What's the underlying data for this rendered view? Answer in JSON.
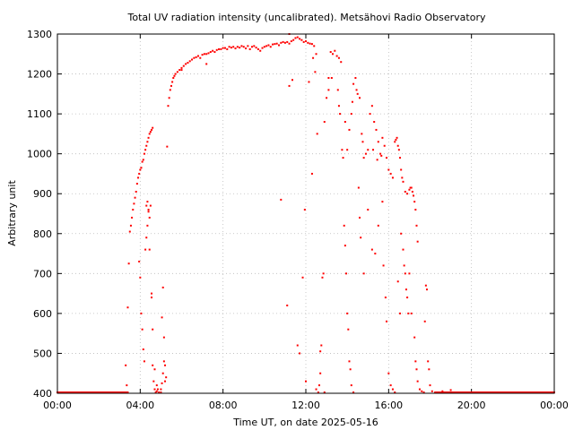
{
  "chart_data": {
    "type": "scatter",
    "title": "Total UV radiation intensity (uncalibrated). Metsähovi Radio Observatory",
    "xlabel": "Time UT, on date 2025-05-16",
    "ylabel": "Arbitrary unit",
    "xlim": [
      0,
      24
    ],
    "ylim": [
      400,
      1300
    ],
    "x_unit": "hours UT",
    "xticks": [
      {
        "value": 0,
        "label": "00:00"
      },
      {
        "value": 4,
        "label": "04:00"
      },
      {
        "value": 8,
        "label": "08:00"
      },
      {
        "value": 12,
        "label": "12:00"
      },
      {
        "value": 16,
        "label": "16:00"
      },
      {
        "value": 20,
        "label": "20:00"
      },
      {
        "value": 24,
        "label": "00:00"
      }
    ],
    "yticks": [
      {
        "value": 400,
        "label": "400"
      },
      {
        "value": 500,
        "label": "500"
      },
      {
        "value": 600,
        "label": "600"
      },
      {
        "value": 700,
        "label": "700"
      },
      {
        "value": 800,
        "label": "800"
      },
      {
        "value": 900,
        "label": "900"
      },
      {
        "value": 1000,
        "label": "1000"
      },
      {
        "value": 1100,
        "label": "1100"
      },
      {
        "value": 1200,
        "label": "1200"
      },
      {
        "value": 1300,
        "label": "1300"
      }
    ],
    "grid": true,
    "marker_color": "#ff0000",
    "series": [
      {
        "points": [
          [
            0.0,
            400
          ],
          [
            0.5,
            400
          ],
          [
            1.0,
            400
          ],
          [
            1.5,
            400
          ],
          [
            2.0,
            400
          ],
          [
            2.5,
            400
          ],
          [
            3.0,
            400
          ],
          [
            3.4,
            400
          ],
          [
            3.3,
            470
          ],
          [
            3.35,
            420
          ],
          [
            3.4,
            615
          ],
          [
            3.45,
            725
          ],
          [
            3.5,
            805
          ],
          [
            3.55,
            820
          ],
          [
            3.6,
            840
          ],
          [
            3.65,
            860
          ],
          [
            3.7,
            875
          ],
          [
            3.75,
            890
          ],
          [
            3.8,
            905
          ],
          [
            3.85,
            925
          ],
          [
            3.9,
            940
          ],
          [
            3.95,
            950
          ],
          [
            4.0,
            960
          ],
          [
            4.05,
            965
          ],
          [
            4.1,
            980
          ],
          [
            4.15,
            985
          ],
          [
            4.2,
            1000
          ],
          [
            4.25,
            1010
          ],
          [
            4.3,
            1020
          ],
          [
            4.35,
            1030
          ],
          [
            4.4,
            1040
          ],
          [
            4.45,
            1050
          ],
          [
            4.5,
            1055
          ],
          [
            4.55,
            1060
          ],
          [
            4.6,
            1065
          ],
          [
            3.95,
            730
          ],
          [
            4.0,
            690
          ],
          [
            4.05,
            600
          ],
          [
            4.1,
            560
          ],
          [
            4.15,
            510
          ],
          [
            4.2,
            480
          ],
          [
            4.25,
            760
          ],
          [
            4.3,
            790
          ],
          [
            4.35,
            820
          ],
          [
            4.4,
            860
          ],
          [
            4.45,
            840
          ],
          [
            4.5,
            870
          ],
          [
            4.55,
            650
          ],
          [
            4.6,
            470
          ],
          [
            4.65,
            430
          ],
          [
            4.7,
            410
          ],
          [
            4.75,
            400
          ],
          [
            4.8,
            405
          ],
          [
            4.85,
            410
          ],
          [
            4.9,
            400
          ],
          [
            5.0,
            400
          ],
          [
            5.05,
            590
          ],
          [
            5.1,
            665
          ],
          [
            5.15,
            540
          ],
          [
            5.2,
            470
          ],
          [
            5.25,
            440
          ],
          [
            5.3,
            1018
          ],
          [
            5.35,
            1120
          ],
          [
            5.4,
            1140
          ],
          [
            5.45,
            1160
          ],
          [
            5.5,
            1170
          ],
          [
            5.55,
            1180
          ],
          [
            5.6,
            1190
          ],
          [
            5.65,
            1195
          ],
          [
            5.7,
            1200
          ],
          [
            5.8,
            1205
          ],
          [
            5.9,
            1210
          ],
          [
            6.0,
            1215
          ],
          [
            6.1,
            1220
          ],
          [
            6.2,
            1225
          ],
          [
            6.3,
            1228
          ],
          [
            6.4,
            1232
          ],
          [
            6.5,
            1236
          ],
          [
            6.6,
            1240
          ],
          [
            6.7,
            1242
          ],
          [
            6.8,
            1245
          ],
          [
            6.9,
            1240
          ],
          [
            7.0,
            1248
          ],
          [
            7.1,
            1250
          ],
          [
            7.2,
            1250
          ],
          [
            7.3,
            1252
          ],
          [
            7.4,
            1255
          ],
          [
            7.5,
            1258
          ],
          [
            7.6,
            1255
          ],
          [
            7.7,
            1260
          ],
          [
            7.8,
            1262
          ],
          [
            7.9,
            1262
          ],
          [
            8.0,
            1265
          ],
          [
            8.1,
            1265
          ],
          [
            8.2,
            1262
          ],
          [
            8.3,
            1268
          ],
          [
            8.4,
            1266
          ],
          [
            8.5,
            1268
          ],
          [
            8.6,
            1264
          ],
          [
            8.7,
            1268
          ],
          [
            8.8,
            1266
          ],
          [
            8.9,
            1270
          ],
          [
            9.0,
            1268
          ],
          [
            9.1,
            1264
          ],
          [
            9.2,
            1270
          ],
          [
            9.3,
            1262
          ],
          [
            9.4,
            1268
          ],
          [
            9.5,
            1270
          ],
          [
            9.6,
            1266
          ],
          [
            9.7,
            1262
          ],
          [
            9.8,
            1258
          ],
          [
            9.9,
            1265
          ],
          [
            10.0,
            1268
          ],
          [
            10.1,
            1270
          ],
          [
            10.2,
            1272
          ],
          [
            10.3,
            1268
          ],
          [
            10.4,
            1274
          ],
          [
            10.5,
            1275
          ],
          [
            10.6,
            1276
          ],
          [
            10.7,
            1272
          ],
          [
            10.8,
            1278
          ],
          [
            10.9,
            1280
          ],
          [
            11.0,
            1278
          ],
          [
            11.1,
            1280
          ],
          [
            11.2,
            1276
          ],
          [
            11.3,
            1282
          ],
          [
            11.4,
            1285
          ],
          [
            11.5,
            1290
          ],
          [
            11.6,
            1292
          ],
          [
            11.7,
            1288
          ],
          [
            11.8,
            1285
          ],
          [
            11.9,
            1280
          ],
          [
            12.0,
            1282
          ],
          [
            12.1,
            1278
          ],
          [
            12.2,
            1276
          ],
          [
            12.3,
            1275
          ],
          [
            12.4,
            1270
          ],
          [
            12.5,
            1250
          ],
          [
            11.2,
            1300
          ],
          [
            10.8,
            885
          ],
          [
            11.1,
            620
          ],
          [
            11.2,
            1170
          ],
          [
            11.35,
            1185
          ],
          [
            11.6,
            520
          ],
          [
            11.7,
            500
          ],
          [
            11.85,
            690
          ],
          [
            11.95,
            860
          ],
          [
            12.15,
            1180
          ],
          [
            12.35,
            1240
          ],
          [
            12.45,
            1205
          ],
          [
            12.3,
            950
          ],
          [
            12.55,
            1050
          ],
          [
            12.5,
            410
          ],
          [
            12.6,
            400
          ],
          [
            12.65,
            420
          ],
          [
            12.7,
            450
          ],
          [
            12.75,
            520
          ],
          [
            12.8,
            690
          ],
          [
            12.85,
            700
          ],
          [
            12.9,
            1080
          ],
          [
            13.0,
            1140
          ],
          [
            13.1,
            1160
          ],
          [
            13.2,
            1255
          ],
          [
            13.3,
            1250
          ],
          [
            13.4,
            1258
          ],
          [
            13.5,
            1245
          ],
          [
            13.6,
            1240
          ],
          [
            13.7,
            1230
          ],
          [
            13.55,
            1160
          ],
          [
            13.6,
            1120
          ],
          [
            13.65,
            1100
          ],
          [
            13.75,
            1010
          ],
          [
            13.8,
            990
          ],
          [
            13.85,
            820
          ],
          [
            13.9,
            770
          ],
          [
            13.95,
            700
          ],
          [
            14.0,
            600
          ],
          [
            14.05,
            560
          ],
          [
            14.1,
            480
          ],
          [
            14.15,
            460
          ],
          [
            14.2,
            420
          ],
          [
            14.3,
            400
          ],
          [
            14.0,
            1010
          ],
          [
            14.1,
            1060
          ],
          [
            14.2,
            1100
          ],
          [
            14.25,
            1130
          ],
          [
            14.3,
            1175
          ],
          [
            14.4,
            1190
          ],
          [
            14.45,
            1160
          ],
          [
            14.5,
            1150
          ],
          [
            14.6,
            1140
          ],
          [
            14.7,
            1050
          ],
          [
            14.75,
            1030
          ],
          [
            14.8,
            990
          ],
          [
            14.9,
            1000
          ],
          [
            15.0,
            1010
          ],
          [
            15.1,
            1100
          ],
          [
            15.2,
            1120
          ],
          [
            15.3,
            1080
          ],
          [
            15.4,
            1060
          ],
          [
            15.5,
            1030
          ],
          [
            15.6,
            1000
          ],
          [
            15.7,
            1040
          ],
          [
            15.8,
            1020
          ],
          [
            15.9,
            990
          ],
          [
            16.0,
            960
          ],
          [
            16.1,
            950
          ],
          [
            16.2,
            940
          ],
          [
            16.3,
            1030
          ],
          [
            16.35,
            1035
          ],
          [
            16.4,
            1040
          ],
          [
            16.45,
            1020
          ],
          [
            16.5,
            1010
          ],
          [
            16.55,
            990
          ],
          [
            16.6,
            960
          ],
          [
            16.65,
            940
          ],
          [
            16.7,
            930
          ],
          [
            16.8,
            905
          ],
          [
            16.9,
            900
          ],
          [
            17.0,
            910
          ],
          [
            17.05,
            915
          ],
          [
            17.1,
            915
          ],
          [
            17.15,
            905
          ],
          [
            17.2,
            895
          ],
          [
            17.25,
            880
          ],
          [
            17.3,
            860
          ],
          [
            17.35,
            820
          ],
          [
            17.4,
            780
          ],
          [
            14.55,
            915
          ],
          [
            14.6,
            840
          ],
          [
            14.65,
            790
          ],
          [
            14.8,
            700
          ],
          [
            15.0,
            860
          ],
          [
            15.2,
            760
          ],
          [
            15.35,
            750
          ],
          [
            15.5,
            820
          ],
          [
            15.7,
            880
          ],
          [
            15.75,
            720
          ],
          [
            15.85,
            640
          ],
          [
            15.9,
            580
          ],
          [
            16.0,
            450
          ],
          [
            16.1,
            420
          ],
          [
            16.2,
            410
          ],
          [
            16.3,
            400
          ],
          [
            16.45,
            680
          ],
          [
            16.55,
            600
          ],
          [
            16.6,
            800
          ],
          [
            16.7,
            760
          ],
          [
            16.75,
            720
          ],
          [
            16.8,
            700
          ],
          [
            16.85,
            660
          ],
          [
            16.9,
            640
          ],
          [
            16.95,
            600
          ],
          [
            17.0,
            700
          ],
          [
            17.1,
            600
          ],
          [
            17.25,
            540
          ],
          [
            17.3,
            480
          ],
          [
            17.35,
            460
          ],
          [
            17.4,
            430
          ],
          [
            17.5,
            410
          ],
          [
            17.6,
            405
          ],
          [
            17.7,
            400
          ],
          [
            17.75,
            580
          ],
          [
            17.8,
            670
          ],
          [
            17.85,
            660
          ],
          [
            17.9,
            480
          ],
          [
            17.95,
            460
          ],
          [
            18.0,
            420
          ],
          [
            18.1,
            405
          ],
          [
            18.3,
            400
          ],
          [
            18.6,
            405
          ],
          [
            19.0,
            408
          ],
          [
            19.5,
            400
          ],
          [
            20.0,
            400
          ],
          [
            20.5,
            400
          ],
          [
            21.0,
            400
          ],
          [
            21.5,
            400
          ],
          [
            22.0,
            400
          ],
          [
            22.5,
            400
          ],
          [
            23.0,
            400
          ],
          [
            23.5,
            400
          ],
          [
            24.0,
            400
          ],
          [
            4.3,
            870
          ],
          [
            4.35,
            880
          ],
          [
            4.4,
            855
          ],
          [
            4.45,
            760
          ],
          [
            4.55,
            640
          ],
          [
            4.6,
            560
          ],
          [
            4.7,
            460
          ],
          [
            4.8,
            420
          ],
          [
            5.0,
            410
          ],
          [
            5.05,
            425
          ],
          [
            5.1,
            450
          ],
          [
            5.15,
            480
          ],
          [
            5.2,
            430
          ],
          [
            7.2,
            1225
          ],
          [
            6.0,
            1210
          ],
          [
            12.0,
            430
          ],
          [
            12.7,
            505
          ],
          [
            12.9,
            395
          ],
          [
            13.1,
            1190
          ],
          [
            13.25,
            1190
          ],
          [
            13.9,
            1080
          ],
          [
            15.25,
            1010
          ],
          [
            15.45,
            985
          ],
          [
            15.65,
            995
          ]
        ]
      }
    ]
  }
}
